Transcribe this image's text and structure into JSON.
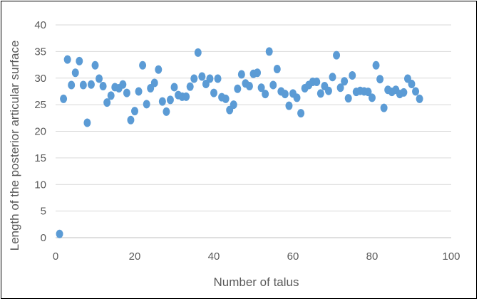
{
  "chart_data": {
    "type": "scatter",
    "title": "",
    "xlabel": "Number of talus",
    "ylabel": "Length of the posterior articular surface",
    "xlim": [
      0,
      100
    ],
    "ylim": [
      0,
      40
    ],
    "x_ticks": [
      0,
      20,
      40,
      60,
      80,
      100
    ],
    "y_ticks": [
      0,
      5,
      10,
      15,
      20,
      25,
      30,
      35,
      40
    ],
    "grid": "horizontal",
    "legend": "none",
    "marker_color": "#5b9bd5",
    "points": [
      {
        "x": 1,
        "y": 0.7
      },
      {
        "x": 2,
        "y": 26.1
      },
      {
        "x": 3,
        "y": 33.5
      },
      {
        "x": 4,
        "y": 28.7
      },
      {
        "x": 5,
        "y": 31.0
      },
      {
        "x": 6,
        "y": 33.2
      },
      {
        "x": 7,
        "y": 28.7
      },
      {
        "x": 8,
        "y": 21.6
      },
      {
        "x": 9,
        "y": 28.8
      },
      {
        "x": 10,
        "y": 32.4
      },
      {
        "x": 11,
        "y": 29.9
      },
      {
        "x": 12,
        "y": 28.5
      },
      {
        "x": 13,
        "y": 25.4
      },
      {
        "x": 14,
        "y": 26.7
      },
      {
        "x": 15,
        "y": 28.3
      },
      {
        "x": 16,
        "y": 28.1
      },
      {
        "x": 17,
        "y": 28.8
      },
      {
        "x": 18,
        "y": 27.2
      },
      {
        "x": 19,
        "y": 22.1
      },
      {
        "x": 20,
        "y": 23.8
      },
      {
        "x": 21,
        "y": 27.5
      },
      {
        "x": 22,
        "y": 32.4
      },
      {
        "x": 23,
        "y": 25.1
      },
      {
        "x": 24,
        "y": 28.1
      },
      {
        "x": 25,
        "y": 29.1
      },
      {
        "x": 26,
        "y": 31.6
      },
      {
        "x": 27,
        "y": 25.6
      },
      {
        "x": 28,
        "y": 23.7
      },
      {
        "x": 29,
        "y": 25.9
      },
      {
        "x": 30,
        "y": 28.3
      },
      {
        "x": 31,
        "y": 26.8
      },
      {
        "x": 32,
        "y": 26.5
      },
      {
        "x": 33,
        "y": 26.5
      },
      {
        "x": 34,
        "y": 28.4
      },
      {
        "x": 35,
        "y": 29.9
      },
      {
        "x": 36,
        "y": 34.8
      },
      {
        "x": 37,
        "y": 30.3
      },
      {
        "x": 38,
        "y": 28.9
      },
      {
        "x": 39,
        "y": 29.9
      },
      {
        "x": 40,
        "y": 27.2
      },
      {
        "x": 41,
        "y": 29.9
      },
      {
        "x": 42,
        "y": 26.4
      },
      {
        "x": 43,
        "y": 26.1
      },
      {
        "x": 44,
        "y": 24.0
      },
      {
        "x": 45,
        "y": 25.0
      },
      {
        "x": 46,
        "y": 28.0
      },
      {
        "x": 47,
        "y": 30.7
      },
      {
        "x": 48,
        "y": 29.0
      },
      {
        "x": 49,
        "y": 28.5
      },
      {
        "x": 50,
        "y": 30.8
      },
      {
        "x": 51,
        "y": 31.0
      },
      {
        "x": 52,
        "y": 28.2
      },
      {
        "x": 53,
        "y": 27.0
      },
      {
        "x": 54,
        "y": 35.0
      },
      {
        "x": 55,
        "y": 28.7
      },
      {
        "x": 56,
        "y": 31.7
      },
      {
        "x": 57,
        "y": 27.5
      },
      {
        "x": 58,
        "y": 27.0
      },
      {
        "x": 59,
        "y": 24.8
      },
      {
        "x": 60,
        "y": 27.1
      },
      {
        "x": 61,
        "y": 26.3
      },
      {
        "x": 62,
        "y": 23.4
      },
      {
        "x": 63,
        "y": 28.1
      },
      {
        "x": 64,
        "y": 28.7
      },
      {
        "x": 65,
        "y": 29.3
      },
      {
        "x": 66,
        "y": 29.3
      },
      {
        "x": 67,
        "y": 27.1
      },
      {
        "x": 68,
        "y": 28.5
      },
      {
        "x": 69,
        "y": 27.6
      },
      {
        "x": 70,
        "y": 30.2
      },
      {
        "x": 71,
        "y": 34.3
      },
      {
        "x": 72,
        "y": 28.2
      },
      {
        "x": 73,
        "y": 29.4
      },
      {
        "x": 74,
        "y": 26.2
      },
      {
        "x": 75,
        "y": 30.5
      },
      {
        "x": 76,
        "y": 27.4
      },
      {
        "x": 77,
        "y": 27.6
      },
      {
        "x": 78,
        "y": 27.5
      },
      {
        "x": 79,
        "y": 27.4
      },
      {
        "x": 80,
        "y": 26.3
      },
      {
        "x": 81,
        "y": 32.4
      },
      {
        "x": 82,
        "y": 29.8
      },
      {
        "x": 83,
        "y": 24.4
      },
      {
        "x": 84,
        "y": 27.8
      },
      {
        "x": 85,
        "y": 27.4
      },
      {
        "x": 86,
        "y": 27.8
      },
      {
        "x": 87,
        "y": 27.0
      },
      {
        "x": 88,
        "y": 27.3
      },
      {
        "x": 89,
        "y": 29.9
      },
      {
        "x": 90,
        "y": 28.9
      },
      {
        "x": 91,
        "y": 27.5
      },
      {
        "x": 92,
        "y": 26.1
      }
    ]
  }
}
